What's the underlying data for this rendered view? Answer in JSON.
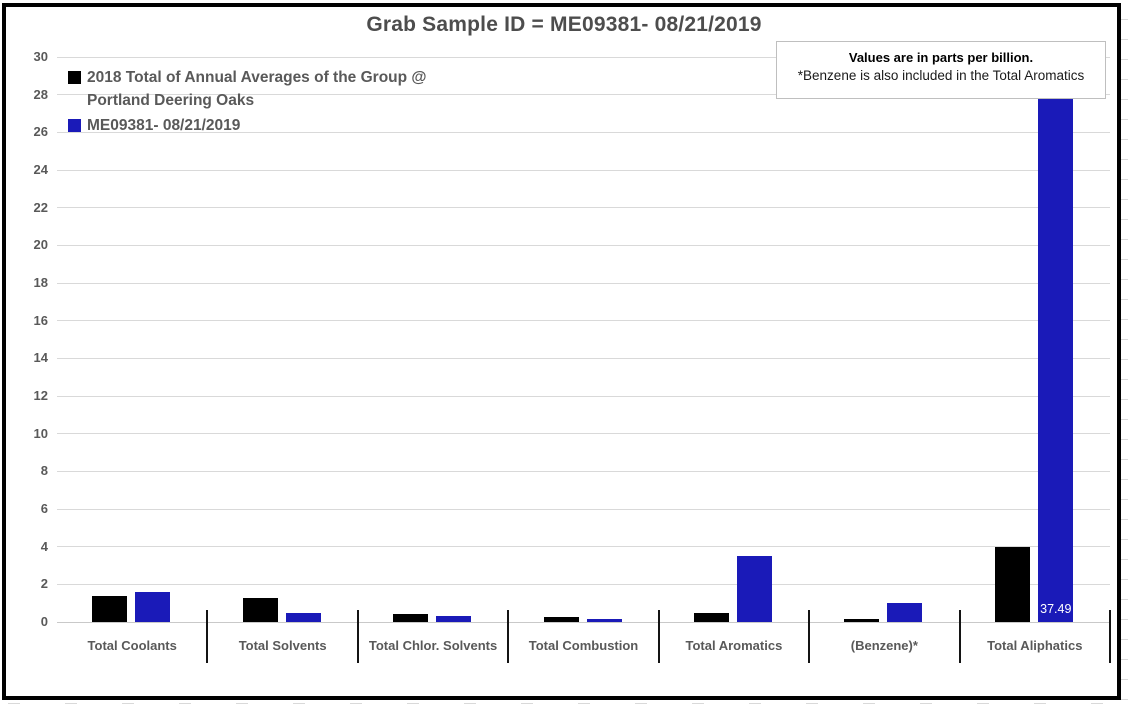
{
  "title": "Grab Sample ID = ME09381- 08/21/2019",
  "note": {
    "line1": "Values are in parts per billion.",
    "line2": "*Benzene is also included in the Total Aromatics"
  },
  "legend": {
    "items": [
      {
        "label": "2018 Total of Annual Averages of the Group @ Portland Deering Oaks",
        "color": "#000000"
      },
      {
        "label": "ME09381- 08/21/2019",
        "color": "#1a1ab8"
      }
    ]
  },
  "chart_data": {
    "type": "bar",
    "title": "Grab Sample ID = ME09381- 08/21/2019",
    "categories": [
      "Total Coolants",
      "Total Solvents",
      "Total Chlor. Solvents",
      "Total Combustion",
      "Total Aromatics",
      "(Benzene)*",
      "Total Aliphatics"
    ],
    "series": [
      {
        "name": "2018 Total of Annual Averages of the Group @ Portland Deering Oaks",
        "color": "#000000",
        "values": [
          1.4,
          1.3,
          0.4,
          0.25,
          0.5,
          0.15,
          4.0
        ]
      },
      {
        "name": "ME09381- 08/21/2019",
        "color": "#1a1ab8",
        "values": [
          1.6,
          0.5,
          0.3,
          0.15,
          3.5,
          1.0,
          37.49
        ]
      }
    ],
    "xlabel": "",
    "ylabel": "",
    "ylim": [
      0,
      30
    ],
    "yticks": [
      0,
      2,
      4,
      6,
      8,
      10,
      12,
      14,
      16,
      18,
      20,
      22,
      24,
      26,
      28,
      30
    ],
    "grid": true,
    "legend_position": "top-left-inside",
    "units": "parts per billion",
    "data_labels": [
      {
        "series_index": 1,
        "category_index": 6,
        "text": "37.49",
        "color": "#ffffff",
        "note": "bar exceeds axis maximum and is clipped at 30"
      }
    ]
  },
  "colors": {
    "bar_black": "#000000",
    "bar_blue": "#1a1ab8",
    "gridline": "#d9d9d9",
    "axis_text": "#595959",
    "title_text": "#4d4d4d",
    "chart_border": "#000000"
  }
}
